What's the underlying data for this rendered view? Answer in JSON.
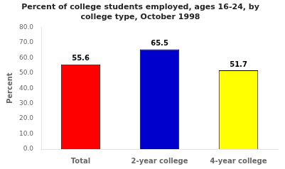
{
  "chart_data": {
    "type": "bar",
    "title": "Percent of college students employed, ages 16-24, by\ncollege type, October 1998",
    "categories": [
      "Total",
      "2-year college",
      "4-year college"
    ],
    "values": [
      55.6,
      65.5,
      51.7
    ],
    "colors": [
      "#ff0000",
      "#0000cc",
      "#ffff00"
    ],
    "ylabel": "Percent",
    "ylim": [
      0,
      80
    ],
    "yticks": [
      {
        "value": 0,
        "label": "0.0"
      },
      {
        "value": 10,
        "label": "10.0"
      },
      {
        "value": 20,
        "label": "20.0"
      },
      {
        "value": 30,
        "label": "30.0"
      },
      {
        "value": 40,
        "label": "40.0"
      },
      {
        "value": 50,
        "label": "50.0"
      },
      {
        "value": 60,
        "label": "60.0"
      },
      {
        "value": 70,
        "label": "70.0"
      },
      {
        "value": 80,
        "label": "80.0"
      }
    ],
    "grid": false,
    "data_labels": true
  }
}
